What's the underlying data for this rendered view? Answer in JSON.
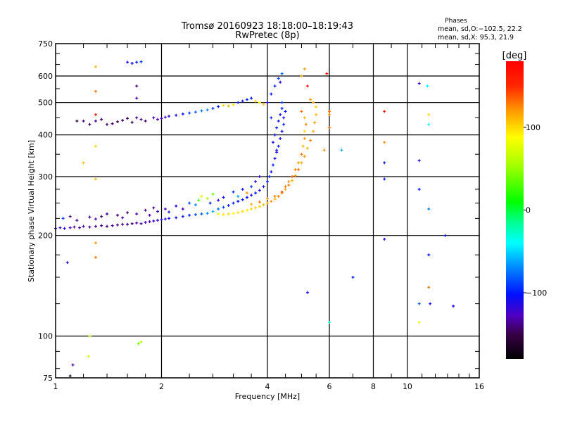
{
  "chart_data": {
    "type": "scatter",
    "title": "Tromsø 20160923 18:18:00–18:19:43",
    "subtitle": "RwPretec (8p)",
    "legend_info": {
      "heading": "Phases",
      "line_o": "mean, sd,O:−102.5, 22.2",
      "line_x": "mean, sd,X:  95.3, 21.9"
    },
    "xlabel": "Frequency [MHz]",
    "ylabel": "Stationary phase Virtual Height [km]",
    "xscale": "log",
    "yscale": "log",
    "xlim": [
      1,
      16
    ],
    "ylim": [
      75,
      750
    ],
    "xticks": [
      1,
      2,
      4,
      6,
      8,
      10,
      16
    ],
    "xtick_labels": [
      "1",
      "2",
      "4",
      "6",
      "8",
      "10",
      "16"
    ],
    "xgrid": [
      2,
      4,
      6,
      8,
      10
    ],
    "yticks": [
      75,
      100,
      200,
      300,
      400,
      500,
      600,
      750
    ],
    "ytick_labels": [
      "75",
      "100",
      "200",
      "300",
      "400",
      "500",
      "600",
      "750"
    ],
    "ygrid": [
      100,
      200,
      300,
      400,
      500,
      600
    ],
    "grid": true,
    "colorbar": {
      "label": "[deg]",
      "range": [
        -180,
        180
      ],
      "ticks": [
        100,
        0,
        -100
      ],
      "tick_labels": [
        "100",
        "0",
        "−100"
      ],
      "stops": [
        [
          -180,
          "#000000"
        ],
        [
          -150,
          "#380048"
        ],
        [
          -128,
          "#5000c0"
        ],
        [
          -102,
          "#0010ff"
        ],
        [
          -72,
          "#0080ff"
        ],
        [
          -40,
          "#00ffff"
        ],
        [
          -15,
          "#00ff90"
        ],
        [
          10,
          "#00ff00"
        ],
        [
          55,
          "#a8ff00"
        ],
        [
          88,
          "#ffff00"
        ],
        [
          118,
          "#ffa000"
        ],
        [
          150,
          "#ff2800"
        ],
        [
          180,
          "#ff0000"
        ]
      ]
    },
    "point_format": [
      "frequency_MHz",
      "height_km",
      "phase_deg"
    ],
    "points": [
      [
        1.0,
        210,
        -120
      ],
      [
        1.03,
        211,
        -115
      ],
      [
        1.06,
        210,
        -110
      ],
      [
        1.1,
        211,
        -125
      ],
      [
        1.13,
        212,
        -130
      ],
      [
        1.17,
        211,
        -135
      ],
      [
        1.2,
        213,
        -130
      ],
      [
        1.25,
        212,
        -140
      ],
      [
        1.3,
        213,
        -135
      ],
      [
        1.35,
        214,
        -138
      ],
      [
        1.4,
        213,
        -140
      ],
      [
        1.45,
        214,
        -135
      ],
      [
        1.5,
        215,
        -140
      ],
      [
        1.55,
        216,
        -138
      ],
      [
        1.6,
        216,
        -135
      ],
      [
        1.65,
        217,
        -140
      ],
      [
        1.7,
        218,
        -135
      ],
      [
        1.75,
        217,
        -130
      ],
      [
        1.8,
        219,
        -125
      ],
      [
        1.85,
        220,
        -128
      ],
      [
        1.9,
        221,
        -120
      ],
      [
        1.95,
        222,
        -118
      ],
      [
        2.0,
        223,
        -115
      ],
      [
        2.05,
        224,
        -112
      ],
      [
        2.1,
        225,
        -110
      ],
      [
        2.2,
        226,
        -105
      ],
      [
        2.3,
        228,
        -100
      ],
      [
        2.4,
        230,
        -95
      ],
      [
        2.5,
        231,
        -85
      ],
      [
        2.6,
        232,
        -80
      ],
      [
        2.7,
        233,
        -70
      ],
      [
        2.8,
        236,
        -60
      ],
      [
        2.9,
        240,
        -75
      ],
      [
        3.0,
        243,
        -90
      ],
      [
        3.1,
        246,
        -95
      ],
      [
        3.2,
        250,
        -100
      ],
      [
        3.3,
        253,
        -105
      ],
      [
        3.4,
        256,
        -100
      ],
      [
        3.5,
        260,
        -105
      ],
      [
        3.6,
        264,
        -110
      ],
      [
        3.7,
        268,
        -100
      ],
      [
        3.8,
        273,
        -110
      ],
      [
        3.9,
        280,
        -105
      ],
      [
        4.0,
        290,
        -100
      ],
      [
        4.05,
        300,
        -95
      ],
      [
        4.1,
        310,
        -105
      ],
      [
        4.15,
        325,
        -100
      ],
      [
        4.2,
        340,
        -110
      ],
      [
        4.25,
        355,
        -105
      ],
      [
        4.3,
        370,
        -100
      ],
      [
        4.35,
        390,
        -110
      ],
      [
        4.4,
        410,
        -105
      ],
      [
        4.45,
        430,
        -100
      ],
      [
        4.45,
        450,
        -110
      ],
      [
        4.5,
        470,
        -100
      ],
      [
        1.05,
        225,
        -90
      ],
      [
        1.1,
        228,
        -140
      ],
      [
        1.15,
        222,
        -135
      ],
      [
        1.25,
        227,
        -140
      ],
      [
        1.3,
        224,
        -130
      ],
      [
        1.35,
        228,
        -145
      ],
      [
        1.4,
        232,
        -135
      ],
      [
        1.5,
        230,
        -140
      ],
      [
        1.55,
        226,
        -130
      ],
      [
        1.6,
        234,
        -138
      ],
      [
        1.7,
        232,
        -130
      ],
      [
        1.8,
        238,
        -140
      ],
      [
        1.85,
        230,
        -130
      ],
      [
        1.9,
        242,
        -135
      ],
      [
        1.95,
        236,
        -120
      ],
      [
        2.05,
        240,
        -125
      ],
      [
        2.1,
        235,
        -110
      ],
      [
        2.2,
        245,
        -115
      ],
      [
        2.3,
        240,
        -130
      ],
      [
        2.4,
        250,
        -85
      ],
      [
        2.5,
        247,
        -70
      ],
      [
        2.55,
        255,
        30
      ],
      [
        2.6,
        262,
        80
      ],
      [
        2.7,
        258,
        60
      ],
      [
        2.8,
        266,
        40
      ],
      [
        2.75,
        250,
        -100
      ],
      [
        2.9,
        255,
        -120
      ],
      [
        3.0,
        260,
        -110
      ],
      [
        3.2,
        270,
        -95
      ],
      [
        3.4,
        275,
        -110
      ],
      [
        3.6,
        280,
        -90
      ],
      [
        3.7,
        290,
        -115
      ],
      [
        3.3,
        262,
        -60
      ],
      [
        3.5,
        268,
        120
      ],
      [
        3.8,
        300,
        -120
      ],
      [
        2.9,
        232,
        90
      ],
      [
        3.0,
        231,
        95
      ],
      [
        3.1,
        232,
        100
      ],
      [
        3.2,
        233,
        90
      ],
      [
        3.3,
        234,
        95
      ],
      [
        3.4,
        236,
        100
      ],
      [
        3.5,
        238,
        95
      ],
      [
        3.6,
        240,
        100
      ],
      [
        3.7,
        242,
        105
      ],
      [
        3.8,
        244,
        100
      ],
      [
        3.9,
        247,
        110
      ],
      [
        4.0,
        250,
        115
      ],
      [
        4.1,
        253,
        120
      ],
      [
        4.2,
        257,
        110
      ],
      [
        4.3,
        262,
        125
      ],
      [
        4.4,
        268,
        120
      ],
      [
        4.5,
        275,
        115
      ],
      [
        4.6,
        283,
        125
      ],
      [
        4.7,
        292,
        110
      ],
      [
        4.8,
        302,
        120
      ],
      [
        4.9,
        315,
        130
      ],
      [
        5.0,
        330,
        115
      ],
      [
        5.1,
        345,
        120
      ],
      [
        5.2,
        365,
        110
      ],
      [
        5.3,
        385,
        125
      ],
      [
        5.4,
        410,
        115
      ],
      [
        5.45,
        435,
        120
      ],
      [
        5.5,
        460,
        110
      ],
      [
        5.5,
        485,
        105
      ],
      [
        5.4,
        500,
        115
      ],
      [
        5.3,
        510,
        120
      ],
      [
        3.6,
        248,
        110
      ],
      [
        3.8,
        252,
        130
      ],
      [
        4.0,
        258,
        120
      ],
      [
        4.2,
        262,
        125
      ],
      [
        4.4,
        270,
        140
      ],
      [
        4.5,
        280,
        130
      ],
      [
        4.6,
        290,
        120
      ],
      [
        4.7,
        300,
        135
      ],
      [
        4.8,
        315,
        125
      ],
      [
        4.9,
        330,
        120
      ],
      [
        5.0,
        350,
        130
      ],
      [
        5.05,
        370,
        110
      ],
      [
        5.1,
        390,
        120
      ],
      [
        5.1,
        410,
        100
      ],
      [
        5.15,
        430,
        125
      ],
      [
        5.1,
        450,
        110
      ],
      [
        5.0,
        470,
        130
      ],
      [
        4.15,
        380,
        -110
      ],
      [
        4.2,
        400,
        -105
      ],
      [
        4.25,
        420,
        -100
      ],
      [
        4.3,
        440,
        -110
      ],
      [
        4.35,
        460,
        -100
      ],
      [
        4.4,
        480,
        -95
      ],
      [
        4.25,
        360,
        -115
      ],
      [
        1.2,
        440,
        -140
      ],
      [
        1.25,
        430,
        -150
      ],
      [
        1.3,
        440,
        -135
      ],
      [
        1.35,
        445,
        -140
      ],
      [
        1.4,
        430,
        -145
      ],
      [
        1.45,
        432,
        -140
      ],
      [
        1.5,
        438,
        -150
      ],
      [
        1.55,
        442,
        -145
      ],
      [
        1.6,
        448,
        -140
      ],
      [
        1.65,
        436,
        -150
      ],
      [
        1.7,
        450,
        -140
      ],
      [
        1.75,
        445,
        -135
      ],
      [
        1.8,
        440,
        -145
      ],
      [
        1.9,
        450,
        -130
      ],
      [
        1.95,
        445,
        -130
      ],
      [
        2.0,
        448,
        -125
      ],
      [
        2.05,
        452,
        -120
      ],
      [
        2.1,
        455,
        -115
      ],
      [
        2.2,
        458,
        -110
      ],
      [
        2.3,
        462,
        -100
      ],
      [
        2.4,
        465,
        -90
      ],
      [
        2.5,
        468,
        -80
      ],
      [
        2.6,
        472,
        -75
      ],
      [
        2.7,
        475,
        -70
      ],
      [
        2.8,
        480,
        -90
      ],
      [
        2.9,
        486,
        -100
      ],
      [
        3.0,
        490,
        100
      ],
      [
        3.1,
        488,
        110
      ],
      [
        3.2,
        492,
        95
      ],
      [
        3.3,
        500,
        -100
      ],
      [
        3.4,
        505,
        -110
      ],
      [
        3.5,
        510,
        -95
      ],
      [
        3.6,
        515,
        -105
      ],
      [
        3.7,
        505,
        100
      ],
      [
        3.8,
        500,
        90
      ],
      [
        3.9,
        495,
        110
      ],
      [
        4.0,
        500,
        -110
      ],
      [
        4.1,
        530,
        -105
      ],
      [
        4.2,
        560,
        -100
      ],
      [
        4.3,
        590,
        -90
      ],
      [
        4.4,
        610,
        -80
      ],
      [
        4.35,
        575,
        -115
      ],
      [
        1.6,
        660,
        -110
      ],
      [
        1.65,
        655,
        -105
      ],
      [
        1.7,
        660,
        -100
      ],
      [
        1.75,
        662,
        -95
      ],
      [
        1.7,
        560,
        -140
      ],
      [
        1.7,
        515,
        -130
      ],
      [
        1.3,
        640,
        110
      ],
      [
        1.3,
        540,
        130
      ],
      [
        1.3,
        460,
        160
      ],
      [
        1.3,
        370,
        100
      ],
      [
        1.3,
        295,
        110
      ],
      [
        1.3,
        190,
        120
      ],
      [
        1.3,
        172,
        130
      ],
      [
        1.25,
        100,
        60
      ],
      [
        1.24,
        87,
        70
      ],
      [
        1.2,
        330,
        110
      ],
      [
        1.15,
        440,
        -160
      ],
      [
        1.12,
        82,
        -130
      ],
      [
        1.1,
        76,
        -170
      ],
      [
        1.08,
        166,
        -120
      ],
      [
        1.72,
        95,
        40
      ],
      [
        1.75,
        96,
        60
      ],
      [
        5.0,
        600,
        110
      ],
      [
        5.1,
        630,
        120
      ],
      [
        5.2,
        560,
        170
      ],
      [
        5.9,
        610,
        170
      ],
      [
        6.0,
        460,
        120
      ],
      [
        6.0,
        420,
        130
      ],
      [
        5.8,
        360,
        120
      ],
      [
        6.5,
        360,
        -60
      ],
      [
        6.0,
        110,
        -30
      ],
      [
        7.0,
        150,
        -100
      ],
      [
        8.6,
        470,
        165
      ],
      [
        8.6,
        380,
        120
      ],
      [
        8.6,
        330,
        -100
      ],
      [
        8.6,
        295,
        -100
      ],
      [
        8.6,
        195,
        -110
      ],
      [
        10.8,
        570,
        -120
      ],
      [
        10.8,
        335,
        -110
      ],
      [
        10.8,
        275,
        -100
      ],
      [
        11.4,
        560,
        -40
      ],
      [
        11.5,
        460,
        100
      ],
      [
        11.5,
        430,
        -40
      ],
      [
        11.5,
        240,
        -70
      ],
      [
        11.5,
        175,
        -100
      ],
      [
        11.5,
        140,
        130
      ],
      [
        11.6,
        125,
        -110
      ],
      [
        10.8,
        125,
        -80
      ],
      [
        10.8,
        110,
        80
      ],
      [
        12.8,
        200,
        -100
      ],
      [
        13.5,
        123,
        -110
      ],
      [
        5.2,
        135,
        -110
      ],
      [
        6.0,
        470,
        130
      ],
      [
        4.4,
        500,
        -90
      ],
      [
        4.1,
        450,
        -95
      ]
    ]
  }
}
